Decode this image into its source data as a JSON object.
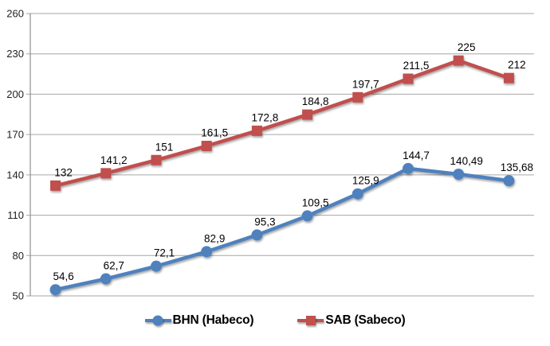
{
  "chart_data": {
    "type": "line",
    "title": "",
    "xlabel": "",
    "ylabel": "",
    "ylim": [
      50,
      260
    ],
    "ytick_step": 30,
    "yticks": [
      50,
      80,
      110,
      140,
      170,
      200,
      230,
      260
    ],
    "grid": true,
    "legend_position": "bottom",
    "x_axis_labels_visible": false,
    "decimal_separator": ",",
    "series": [
      {
        "name": "BHN (Habeco)",
        "color": "#4F81BD",
        "marker": "circle",
        "values": [
          54.6,
          62.7,
          72.1,
          82.9,
          95.3,
          109.5,
          125.9,
          144.7,
          140.49,
          135.68
        ],
        "labels": [
          "54,6",
          "62,7",
          "72,1",
          "82,9",
          "95,3",
          "109,5",
          "125,9",
          "144,7",
          "140,49",
          "135,68"
        ]
      },
      {
        "name": "SAB (Sabeco)",
        "color": "#C0504D",
        "marker": "square",
        "values": [
          132,
          141.2,
          151,
          161.5,
          172.8,
          184.8,
          197.7,
          211.5,
          225,
          212
        ],
        "labels": [
          "132",
          "141,2",
          "151",
          "161,5",
          "172,8",
          "184,8",
          "197,7",
          "211,5",
          "225",
          "212"
        ]
      }
    ],
    "colors": {
      "gridline": "#A6A6A6",
      "axis": "#8E8E8E",
      "label_text": "#000000",
      "series_blue": "#4F81BD",
      "series_red": "#C0504D"
    }
  }
}
